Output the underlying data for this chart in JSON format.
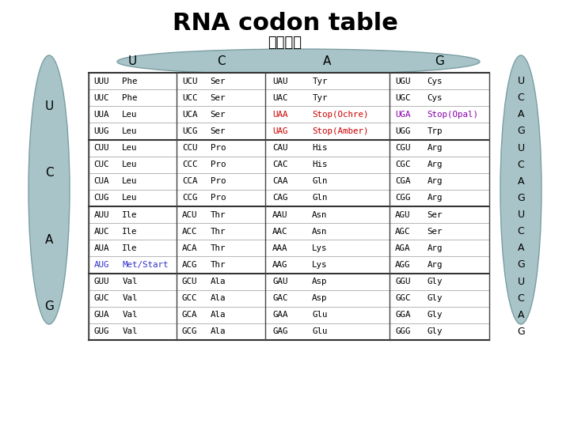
{
  "title": "RNA codon table",
  "subtitle": "遠伝暗号",
  "ellipse_color": "#a8c4c8",
  "table_bg": "#c8dde0",
  "cell_bg": "#ffffff",
  "first_bases": [
    "U",
    "C",
    "A",
    "G"
  ],
  "second_bases": [
    "U",
    "C",
    "A",
    "G"
  ],
  "third_bases": [
    "U",
    "C",
    "A",
    "G"
  ],
  "rows": [
    [
      "UUU",
      "Phe",
      "UCU",
      "Ser",
      "UAU",
      "Tyr",
      "UGU",
      "Cys",
      "U"
    ],
    [
      "UUC",
      "Phe",
      "UCC",
      "Ser",
      "UAC",
      "Tyr",
      "UGC",
      "Cys",
      "C"
    ],
    [
      "UUA",
      "Leu",
      "UCA",
      "Ser",
      "UAA",
      "Stop(Ochre)",
      "UGA",
      "Stop(Opal)",
      "A"
    ],
    [
      "UUG",
      "Leu",
      "UCG",
      "Ser",
      "UAG",
      "Stop(Amber)",
      "UGG",
      "Trp",
      "G"
    ],
    [
      "CUU",
      "Leu",
      "CCU",
      "Pro",
      "CAU",
      "His",
      "CGU",
      "Arg",
      "U"
    ],
    [
      "CUC",
      "Leu",
      "CCC",
      "Pro",
      "CAC",
      "His",
      "CGC",
      "Arg",
      "C"
    ],
    [
      "CUA",
      "Leu",
      "CCA",
      "Pro",
      "CAA",
      "Gln",
      "CGA",
      "Arg",
      "A"
    ],
    [
      "CUG",
      "Leu",
      "CCG",
      "Pro",
      "CAG",
      "Gln",
      "CGG",
      "Arg",
      "G"
    ],
    [
      "AUU",
      "Ile",
      "ACU",
      "Thr",
      "AAU",
      "Asn",
      "AGU",
      "Ser",
      "U"
    ],
    [
      "AUC",
      "Ile",
      "ACC",
      "Thr",
      "AAC",
      "Asn",
      "AGC",
      "Ser",
      "C"
    ],
    [
      "AUA",
      "Ile",
      "ACA",
      "Thr",
      "AAA",
      "Lys",
      "AGA",
      "Arg",
      "A"
    ],
    [
      "AUG",
      "Met/Start",
      "ACG",
      "Thr",
      "AAG",
      "Lys",
      "AGG",
      "Arg",
      "G"
    ],
    [
      "GUU",
      "Val",
      "GCU",
      "Ala",
      "GAU",
      "Asp",
      "GGU",
      "Gly",
      "U"
    ],
    [
      "GUC",
      "Val",
      "GCC",
      "Ala",
      "GAC",
      "Asp",
      "GGC",
      "Gly",
      "C"
    ],
    [
      "GUA",
      "Val",
      "GCA",
      "Ala",
      "GAA",
      "Glu",
      "GGA",
      "Gly",
      "A"
    ],
    [
      "GUG",
      "Val",
      "GCG",
      "Ala",
      "GAG",
      "Glu",
      "GGG",
      "Gly",
      "G"
    ]
  ],
  "special_colors": {
    "UAA": "#cc0000",
    "Stop(Ochre)": "#cc0000",
    "UGA": "#8800aa",
    "Stop(Opal)": "#8800aa",
    "UAG": "#cc0000",
    "Stop(Amber)": "#cc0000",
    "AUG": "#3333cc",
    "Met/Start": "#3333cc"
  }
}
